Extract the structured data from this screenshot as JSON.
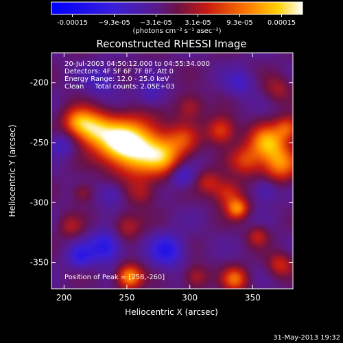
{
  "colorbar": {
    "tick_labels": [
      "-0.00015",
      "−9.3e-05",
      "−3.1e-05",
      "3.1e-05",
      "9.3e-05",
      "0.00015"
    ],
    "units_label": "(photons cm⁻² s⁻¹ asec⁻²)"
  },
  "chart_data": {
    "type": "heatmap",
    "title": "Reconstructed RHESSI Image",
    "xlabel": "Heliocentric X (arcsec)",
    "ylabel": "Heliocentric Y (arcsec)",
    "xlim": [
      190,
      382
    ],
    "ylim": [
      -372,
      -175
    ],
    "x_ticks": [
      200,
      250,
      300,
      350
    ],
    "y_ticks": [
      -200,
      -250,
      -300,
      -350
    ],
    "color_range": [
      -0.00015,
      0.00015
    ],
    "colormap": "blue-purple-red-orange-yellow-white",
    "annotations": [
      "20-Jul-2003 04:50:12.000 to 04:55:34.000",
      "Detectors: 4F 5F 6F 7F 8F, Att 0",
      "Energy Range: 12.0 - 25.0 keV",
      "Clean     Total counts: 2.05E+03"
    ],
    "peak_label": "Position of Peak = [258,-260]",
    "peak": [
      258,
      -260
    ],
    "sources": [
      {
        "x": 258,
        "y": -254,
        "amp": 0.00016,
        "r": 16
      },
      {
        "x": 240,
        "y": -248,
        "amp": 9e-05,
        "r": 12
      },
      {
        "x": 222,
        "y": -238,
        "amp": 0.00012,
        "r": 10
      },
      {
        "x": 210,
        "y": -232,
        "amp": 8e-05,
        "r": 8
      },
      {
        "x": 280,
        "y": -262,
        "amp": 8e-05,
        "r": 10
      },
      {
        "x": 295,
        "y": -248,
        "amp": 6e-05,
        "r": 9
      },
      {
        "x": 300,
        "y": -220,
        "amp": 5e-05,
        "r": 8
      },
      {
        "x": 325,
        "y": -240,
        "amp": 8e-05,
        "r": 8
      },
      {
        "x": 345,
        "y": -265,
        "amp": 7e-05,
        "r": 9
      },
      {
        "x": 362,
        "y": -250,
        "amp": 0.00012,
        "r": 10
      },
      {
        "x": 372,
        "y": -268,
        "amp": 0.0001,
        "r": 10
      },
      {
        "x": 378,
        "y": -238,
        "amp": 8e-05,
        "r": 7
      },
      {
        "x": 330,
        "y": -292,
        "amp": 7e-05,
        "r": 8
      },
      {
        "x": 338,
        "y": -305,
        "amp": 0.0001,
        "r": 6
      },
      {
        "x": 315,
        "y": -283,
        "amp": 5e-05,
        "r": 7
      },
      {
        "x": 252,
        "y": -362,
        "amp": 0.00012,
        "r": 7
      },
      {
        "x": 250,
        "y": -320,
        "amp": 5e-05,
        "r": 8
      },
      {
        "x": 305,
        "y": -362,
        "amp": 5e-05,
        "r": 7
      },
      {
        "x": 336,
        "y": -364,
        "amp": 9e-05,
        "r": 7
      },
      {
        "x": 372,
        "y": -352,
        "amp": 6e-05,
        "r": 7
      },
      {
        "x": 354,
        "y": -328,
        "amp": 5e-05,
        "r": 6
      },
      {
        "x": 205,
        "y": -320,
        "amp": 4e-05,
        "r": 7
      },
      {
        "x": 215,
        "y": -292,
        "amp": 4e-05,
        "r": 6
      },
      {
        "x": 262,
        "y": -292,
        "amp": 4e-05,
        "r": 8
      },
      {
        "x": 370,
        "y": -205,
        "amp": 4e-05,
        "r": 8
      },
      {
        "x": 233,
        "y": -337,
        "amp": -8e-05,
        "r": 9
      },
      {
        "x": 282,
        "y": -340,
        "amp": -8e-05,
        "r": 9
      },
      {
        "x": 213,
        "y": -345,
        "amp": -6e-05,
        "r": 7
      },
      {
        "x": 294,
        "y": -278,
        "amp": -5e-05,
        "r": 7
      },
      {
        "x": 238,
        "y": -293,
        "amp": -4e-05,
        "r": 7
      },
      {
        "x": 360,
        "y": -290,
        "amp": -4e-05,
        "r": 7
      },
      {
        "x": 198,
        "y": -252,
        "amp": -4e-05,
        "r": 7
      },
      {
        "x": 270,
        "y": -210,
        "amp": -4e-05,
        "r": 8
      },
      {
        "x": 230,
        "y": -198,
        "amp": -4e-05,
        "r": 9
      },
      {
        "x": 340,
        "y": -200,
        "amp": -4e-05,
        "r": 8
      }
    ],
    "grid": false
  },
  "footer": {
    "timestamp": "31-May-2013 19:32"
  }
}
